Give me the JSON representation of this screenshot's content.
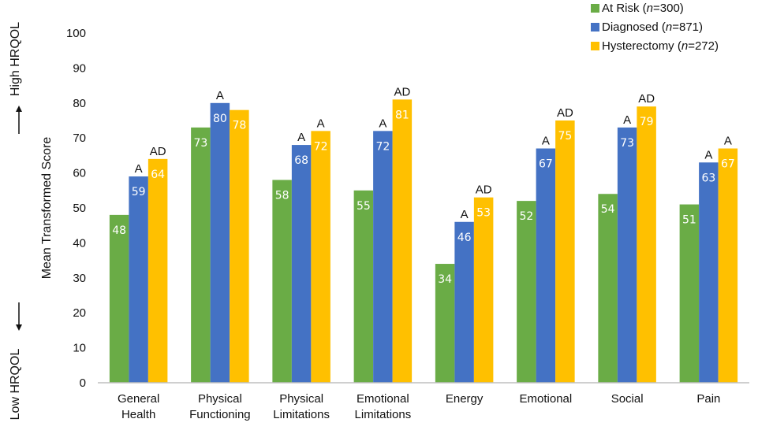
{
  "chart_data": {
    "type": "bar",
    "ylabel": "Mean Transformed Score",
    "side_labels": {
      "top": "High HRQOL",
      "bottom": "Low HRQOL"
    },
    "ylim": [
      0,
      100
    ],
    "yticks": [
      0,
      10,
      20,
      30,
      40,
      50,
      60,
      70,
      80,
      90,
      100
    ],
    "grid": false,
    "legend_position": "top-right",
    "categories": [
      [
        "General",
        "Health"
      ],
      [
        "Physical",
        "Functioning"
      ],
      [
        "Physical",
        "Limitations"
      ],
      [
        "Emotional",
        "Limitations"
      ],
      [
        "Energy"
      ],
      [
        "Emotional"
      ],
      [
        "Social"
      ],
      [
        "Pain"
      ]
    ],
    "series": [
      {
        "name": "At Risk",
        "n_label": "n",
        "n_value": "=300",
        "color": "#6aac46",
        "values": [
          48,
          73,
          58,
          55,
          34,
          52,
          54,
          51
        ],
        "annotations": [
          "",
          "",
          "",
          "",
          "",
          "",
          "",
          ""
        ]
      },
      {
        "name": "Diagnosed",
        "n_label": "n",
        "n_value": "=871",
        "color": "#4472c4",
        "values": [
          59,
          80,
          68,
          72,
          46,
          67,
          73,
          63
        ],
        "annotations": [
          "A",
          "A",
          "A",
          "A",
          "A",
          "A",
          "A",
          "A"
        ]
      },
      {
        "name": "Hysterectomy",
        "n_label": "n",
        "n_value": "=272",
        "color": "#ffc000",
        "values": [
          64,
          78,
          72,
          81,
          53,
          75,
          79,
          67
        ],
        "annotations": [
          "AD",
          "",
          "A",
          "AD",
          "AD",
          "AD",
          "AD",
          "A"
        ]
      }
    ]
  }
}
